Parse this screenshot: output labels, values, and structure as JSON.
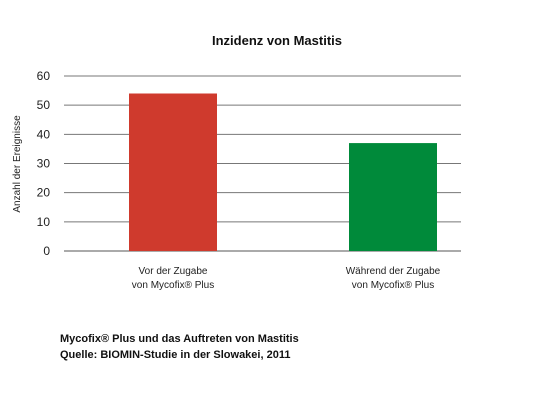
{
  "chart_data": {
    "type": "bar",
    "title": "Inzidenz von Mastitis",
    "ylabel": "Anzahl der Ereignisse",
    "xlabel": "",
    "ylim": [
      0,
      60
    ],
    "yticks": [
      0,
      10,
      20,
      30,
      40,
      50,
      60
    ],
    "grid": true,
    "categories": [
      [
        "Vor der Zugabe",
        "von Mycofix® Plus"
      ],
      [
        "Während der Zugabe",
        "von Mycofix® Plus"
      ]
    ],
    "values": [
      54,
      37
    ],
    "colors": [
      "#cf3a2d",
      "#008a3a"
    ]
  },
  "caption": {
    "line1": "Mycofix® Plus und das Auftreten von Mastitis",
    "line2": "Quelle: BIOMIN-Studie in der Slowakei, 2011"
  }
}
